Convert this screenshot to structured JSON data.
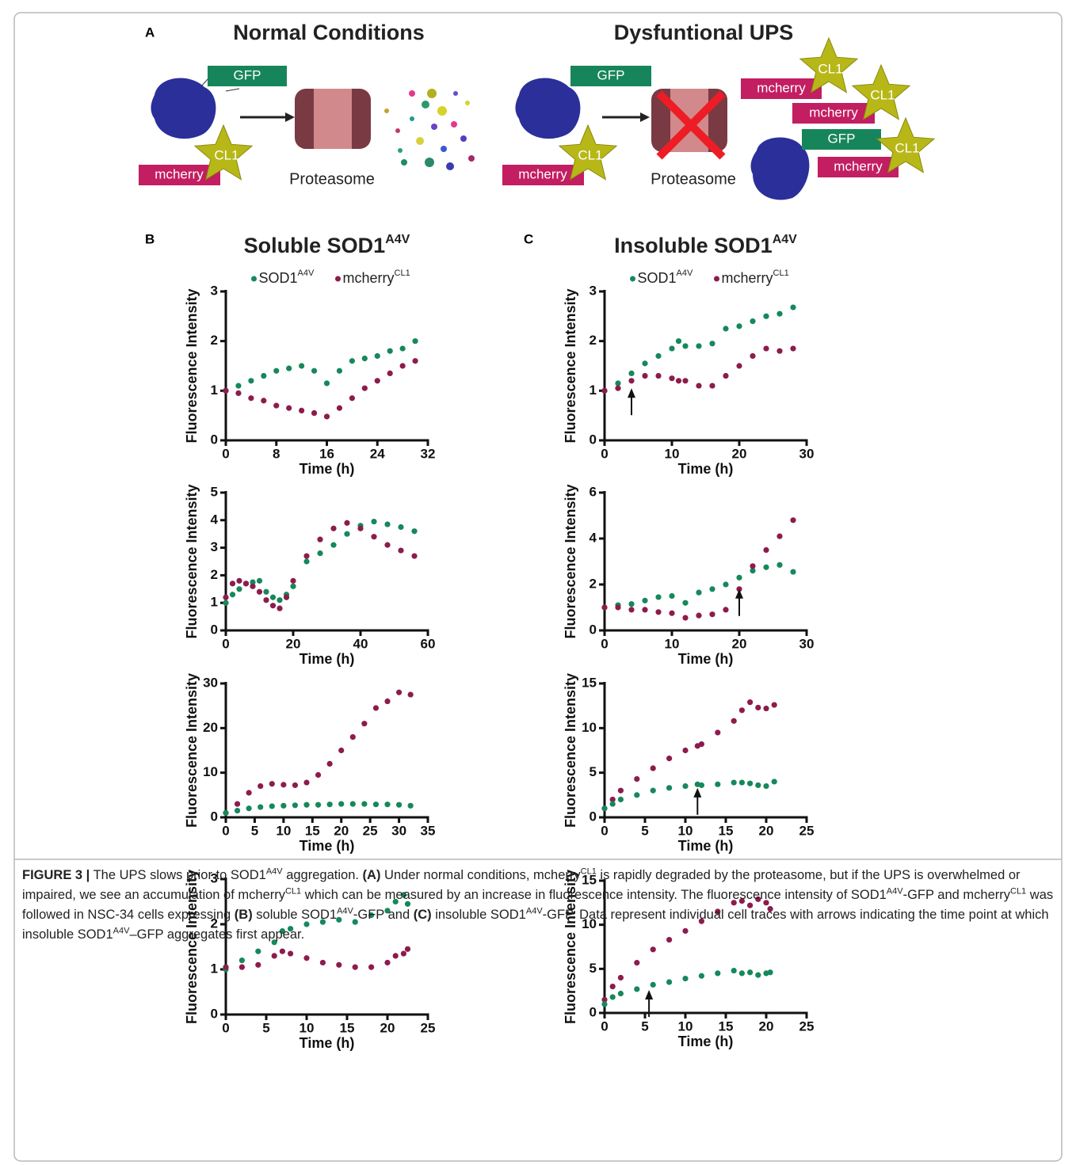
{
  "panel_a": {
    "label": "A",
    "left_title": "Normal Conditions",
    "right_title": "Dysfuntional UPS",
    "labels": [
      "GFP",
      "CL1",
      "mcherry",
      "Proteasome",
      "GFP",
      "CL1",
      "mcherry",
      "Proteasome",
      "mcherry",
      "CL1",
      "mcherry",
      "CL1",
      "GFP",
      "mcherry",
      "CL1"
    ]
  },
  "chart_data": [
    {
      "type": "scatter",
      "panel": "B",
      "title": "Soluble SOD1",
      "title_superscript": "A4V",
      "xlabel": "Time (h)",
      "ylabel": "Fluorescence Intensity",
      "x": [
        0,
        2,
        4,
        6,
        8,
        10,
        12,
        14,
        16,
        18,
        20,
        22,
        24,
        26,
        28,
        30
      ],
      "series": [
        {
          "name": "SOD1",
          "name_superscript": "A4V",
          "color": "#16885a",
          "values": [
            1.0,
            1.1,
            1.2,
            1.3,
            1.4,
            1.45,
            1.5,
            1.4,
            1.15,
            1.4,
            1.6,
            1.65,
            1.7,
            1.8,
            1.85,
            2.0
          ]
        },
        {
          "name": "mcherry",
          "name_superscript": "CL1",
          "color": "#8c1c4c",
          "values": [
            1.0,
            0.95,
            0.85,
            0.8,
            0.7,
            0.65,
            0.6,
            0.55,
            0.48,
            0.65,
            0.85,
            1.05,
            1.2,
            1.35,
            1.5,
            1.6
          ]
        }
      ],
      "xlim": [
        0,
        32
      ],
      "xticks": [
        0,
        8,
        16,
        24,
        32
      ],
      "ylim": [
        0,
        3
      ],
      "yticks": [
        0,
        1,
        2,
        3
      ]
    },
    {
      "type": "scatter",
      "xlabel": "Time (h)",
      "ylabel": "Fluorescence Intensity",
      "x": [
        0,
        2,
        4,
        6,
        8,
        10,
        12,
        14,
        16,
        18,
        20,
        24,
        28,
        32,
        36,
        40,
        44,
        48,
        52,
        56
      ],
      "series": [
        {
          "color": "#16885a",
          "values": [
            1.0,
            1.3,
            1.5,
            1.7,
            1.75,
            1.8,
            1.4,
            1.2,
            1.1,
            1.3,
            1.6,
            2.5,
            2.8,
            3.1,
            3.5,
            3.8,
            3.95,
            3.85,
            3.75,
            3.6
          ]
        },
        {
          "color": "#8c1c4c",
          "values": [
            1.2,
            1.7,
            1.8,
            1.7,
            1.6,
            1.4,
            1.1,
            0.9,
            0.8,
            1.2,
            1.8,
            2.7,
            3.3,
            3.7,
            3.9,
            3.7,
            3.4,
            3.1,
            2.9,
            2.7
          ]
        }
      ],
      "xlim": [
        0,
        60
      ],
      "xticks": [
        0,
        20,
        40,
        60
      ],
      "ylim": [
        0,
        5
      ],
      "yticks": [
        0,
        1,
        2,
        3,
        4,
        5
      ]
    },
    {
      "type": "scatter",
      "xlabel": "Time (h)",
      "ylabel": "Fluorescence Intensity",
      "x": [
        0,
        2,
        4,
        6,
        8,
        10,
        12,
        14,
        16,
        18,
        20,
        22,
        24,
        26,
        28,
        30,
        32
      ],
      "series": [
        {
          "color": "#8c1c4c",
          "values": [
            1,
            3,
            5.5,
            7,
            7.5,
            7.3,
            7.2,
            7.8,
            9.5,
            12,
            15,
            18,
            21,
            24.5,
            26,
            28,
            27.5
          ]
        },
        {
          "color": "#16885a",
          "values": [
            1,
            1.5,
            2,
            2.3,
            2.5,
            2.6,
            2.7,
            2.8,
            2.8,
            2.9,
            3,
            3,
            3,
            2.9,
            2.9,
            2.8,
            2.6
          ]
        }
      ],
      "xlim": [
        0,
        35
      ],
      "xticks": [
        0,
        5,
        10,
        15,
        20,
        25,
        30,
        35
      ],
      "ylim": [
        0,
        30
      ],
      "yticks": [
        0,
        10,
        20,
        30
      ]
    },
    {
      "type": "scatter",
      "xlabel": "Time (h)",
      "ylabel": "Fluorescence Intensity",
      "x": [
        0,
        2,
        4,
        6,
        7,
        8,
        10,
        12,
        14,
        16,
        18,
        20,
        21,
        22,
        22.5
      ],
      "series": [
        {
          "color": "#16885a",
          "values": [
            1.0,
            1.2,
            1.4,
            1.6,
            1.85,
            1.9,
            2.0,
            2.05,
            2.1,
            2.05,
            2.2,
            2.3,
            2.5,
            2.65,
            2.45
          ]
        },
        {
          "color": "#8c1c4c",
          "values": [
            1.05,
            1.05,
            1.1,
            1.3,
            1.4,
            1.35,
            1.25,
            1.15,
            1.1,
            1.05,
            1.05,
            1.15,
            1.3,
            1.35,
            1.45
          ]
        }
      ],
      "xlim": [
        0,
        25
      ],
      "xticks": [
        0,
        5,
        10,
        15,
        20,
        25
      ],
      "ylim": [
        0,
        3
      ],
      "yticks": [
        0,
        1,
        2,
        3
      ]
    },
    {
      "type": "scatter",
      "panel": "C",
      "title": "Insoluble SOD1",
      "title_superscript": "A4V",
      "xlabel": "Time (h)",
      "ylabel": "Fluorescence Intensity",
      "x": [
        0,
        2,
        4,
        6,
        8,
        10,
        11,
        12,
        14,
        16,
        18,
        20,
        22,
        24,
        26,
        28
      ],
      "series": [
        {
          "name": "SOD1",
          "name_superscript": "A4V",
          "color": "#16885a",
          "values": [
            1.0,
            1.15,
            1.35,
            1.55,
            1.7,
            1.85,
            2.0,
            1.9,
            1.9,
            1.95,
            2.25,
            2.3,
            2.4,
            2.5,
            2.55,
            2.68
          ]
        },
        {
          "name": "mcherry",
          "name_superscript": "CL1",
          "color": "#8c1c4c",
          "values": [
            1.0,
            1.05,
            1.2,
            1.3,
            1.3,
            1.25,
            1.2,
            1.2,
            1.1,
            1.1,
            1.3,
            1.5,
            1.7,
            1.85,
            1.8,
            1.85
          ]
        }
      ],
      "arrow": {
        "x": 4,
        "y": 1.05
      },
      "xlim": [
        0,
        30
      ],
      "xticks": [
        0,
        10,
        20,
        30
      ],
      "ylim": [
        0,
        3
      ],
      "yticks": [
        0,
        1,
        2,
        3
      ]
    },
    {
      "type": "scatter",
      "xlabel": "Time (h)",
      "ylabel": "Fluorescence Intensity",
      "x": [
        0,
        2,
        4,
        6,
        8,
        10,
        12,
        14,
        16,
        18,
        20,
        22,
        24,
        26,
        28
      ],
      "series": [
        {
          "color": "#16885a",
          "values": [
            1.0,
            1.1,
            1.15,
            1.3,
            1.45,
            1.5,
            1.2,
            1.65,
            1.8,
            2.0,
            2.3,
            2.6,
            2.75,
            2.85,
            2.55
          ]
        },
        {
          "color": "#8c1c4c",
          "values": [
            1.0,
            1.0,
            0.9,
            0.9,
            0.8,
            0.75,
            0.55,
            0.65,
            0.7,
            0.9,
            1.8,
            2.8,
            3.5,
            4.1,
            4.8
          ]
        }
      ],
      "arrow": {
        "x": 20,
        "y": 1.8
      },
      "xlim": [
        0,
        30
      ],
      "xticks": [
        0,
        10,
        20,
        30
      ],
      "ylim": [
        0,
        6
      ],
      "yticks": [
        0,
        2,
        4,
        6
      ]
    },
    {
      "type": "scatter",
      "xlabel": "Time (h)",
      "ylabel": "Fluorescence Intensity",
      "x": [
        0,
        1,
        2,
        4,
        6,
        8,
        10,
        11.5,
        12,
        14,
        16,
        17,
        18,
        19,
        20,
        21
      ],
      "series": [
        {
          "color": "#8c1c4c",
          "values": [
            1,
            2,
            3,
            4.3,
            5.5,
            6.6,
            7.5,
            8,
            8.2,
            9.5,
            10.8,
            12,
            12.9,
            12.3,
            12.2,
            12.6
          ]
        },
        {
          "color": "#16885a",
          "values": [
            1,
            1.5,
            2,
            2.5,
            3,
            3.3,
            3.5,
            3.7,
            3.6,
            3.7,
            3.9,
            3.9,
            3.8,
            3.6,
            3.5,
            4.0
          ]
        }
      ],
      "arrow": {
        "x": 11.5,
        "y": 3.3
      },
      "xlim": [
        0,
        25
      ],
      "xticks": [
        0,
        5,
        10,
        15,
        20,
        25
      ],
      "ylim": [
        0,
        15
      ],
      "yticks": [
        0,
        5,
        10,
        15
      ]
    },
    {
      "type": "scatter",
      "xlabel": "Time (h)",
      "ylabel": "Fluorescence Intensity",
      "x": [
        0,
        1,
        2,
        4,
        6,
        8,
        10,
        12,
        14,
        16,
        17,
        18,
        19,
        20,
        20.5
      ],
      "series": [
        {
          "color": "#8c1c4c",
          "values": [
            1.5,
            3,
            4,
            5.7,
            7.2,
            8.3,
            9.3,
            10.4,
            11.5,
            12.5,
            12.7,
            12.2,
            12.9,
            12.5,
            11.8
          ]
        },
        {
          "color": "#16885a",
          "values": [
            1.0,
            1.8,
            2.2,
            2.7,
            3.2,
            3.5,
            3.9,
            4.2,
            4.5,
            4.8,
            4.5,
            4.6,
            4.3,
            4.5,
            4.6
          ]
        }
      ],
      "arrow": {
        "x": 5.5,
        "y": 2.6
      },
      "xlim": [
        0,
        25
      ],
      "xticks": [
        0,
        5,
        10,
        15,
        20,
        25
      ],
      "ylim": [
        0,
        15
      ],
      "yticks": [
        0,
        5,
        10,
        15
      ]
    }
  ],
  "caption": [
    "FIGURE 3 |",
    " The UPS slows prior to SOD1",
    "A4V",
    " aggregation. ",
    "(A)",
    " Under normal conditions, mcherry",
    "CL1",
    " is rapidly degraded by the proteasome, but if the UPS is overwhelmed or impaired, we see an accumulation of mcherry",
    "CL1",
    " which can be measured by an increase in fluorescence intensity. The fluorescence intensity of SOD1",
    "A4V",
    "-GFP and mcherry",
    "CL1",
    " was followed in NSC-34 cells expressing ",
    "(B)",
    " soluble SOD1",
    "A4V",
    "-GFP and ",
    "(C)",
    " insoluble SOD1",
    "A4V",
    "-GFP. Data represent individual cell traces with arrows indicating the time point at which insoluble SOD1",
    "A4V",
    "–GFP aggregates first appear."
  ]
}
